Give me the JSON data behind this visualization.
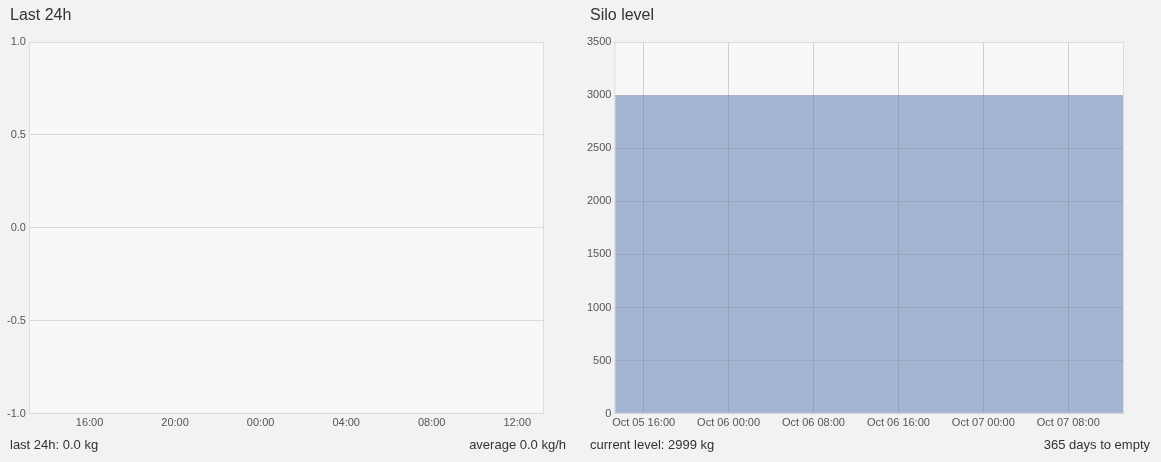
{
  "chart_data": [
    {
      "type": "line",
      "title": "Last 24h",
      "xlim": [
        "--10-06T13:10",
        "--10-07T13:15"
      ],
      "xticks": [
        {
          "value": "--10-06T16:00",
          "label": "16:00"
        },
        {
          "value": "--10-06T20:00",
          "label": "20:00"
        },
        {
          "value": "--10-07T00:00",
          "label": "00:00"
        },
        {
          "value": "--10-07T04:00",
          "label": "04:00"
        },
        {
          "value": "--10-07T08:00",
          "label": "08:00"
        },
        {
          "value": "--10-07T12:00",
          "label": "12:00"
        }
      ],
      "ylim": [
        -1,
        1
      ],
      "yticks": [
        {
          "value": -1,
          "label": "-1.0"
        },
        -0.5,
        {
          "value": 0,
          "label": "0.0"
        },
        0.5,
        {
          "value": 1,
          "label": "1.0"
        }
      ],
      "grid": "y",
      "annotations": [
        "last 24h: 0.0 kg",
        "average 0.0 kg/h"
      ]
    },
    {
      "type": "area",
      "title": "Silo level",
      "x": [
        "--10-05T13:15",
        "--10-07T13:15"
      ],
      "values": [
        2999,
        2999
      ],
      "color": "#a3b5d2",
      "marker": "none",
      "xlim": [
        "--10-05T13:15",
        "--10-07T13:15"
      ],
      "xticks": [
        {
          "value": "--10-05T16:00",
          "label": "Oct 05 16:00"
        },
        {
          "value": "--10-06T00:00",
          "label": "Oct 06 00:00"
        },
        {
          "value": "--10-06T08:00",
          "label": "Oct 06 08:00"
        },
        {
          "value": "--10-06T16:00",
          "label": "Oct 06 16:00"
        },
        {
          "value": "--10-07T00:00",
          "label": "Oct 07 00:00"
        },
        {
          "value": "--10-07T08:00",
          "label": "Oct 07 08:00"
        }
      ],
      "ylim": [
        0,
        3500
      ],
      "yticks": [
        0,
        500,
        1000,
        1500,
        2000,
        2500,
        3000,
        3500
      ],
      "grid": true,
      "annotations": [
        "current level: 2999 kg",
        "365 days to empty"
      ]
    }
  ]
}
